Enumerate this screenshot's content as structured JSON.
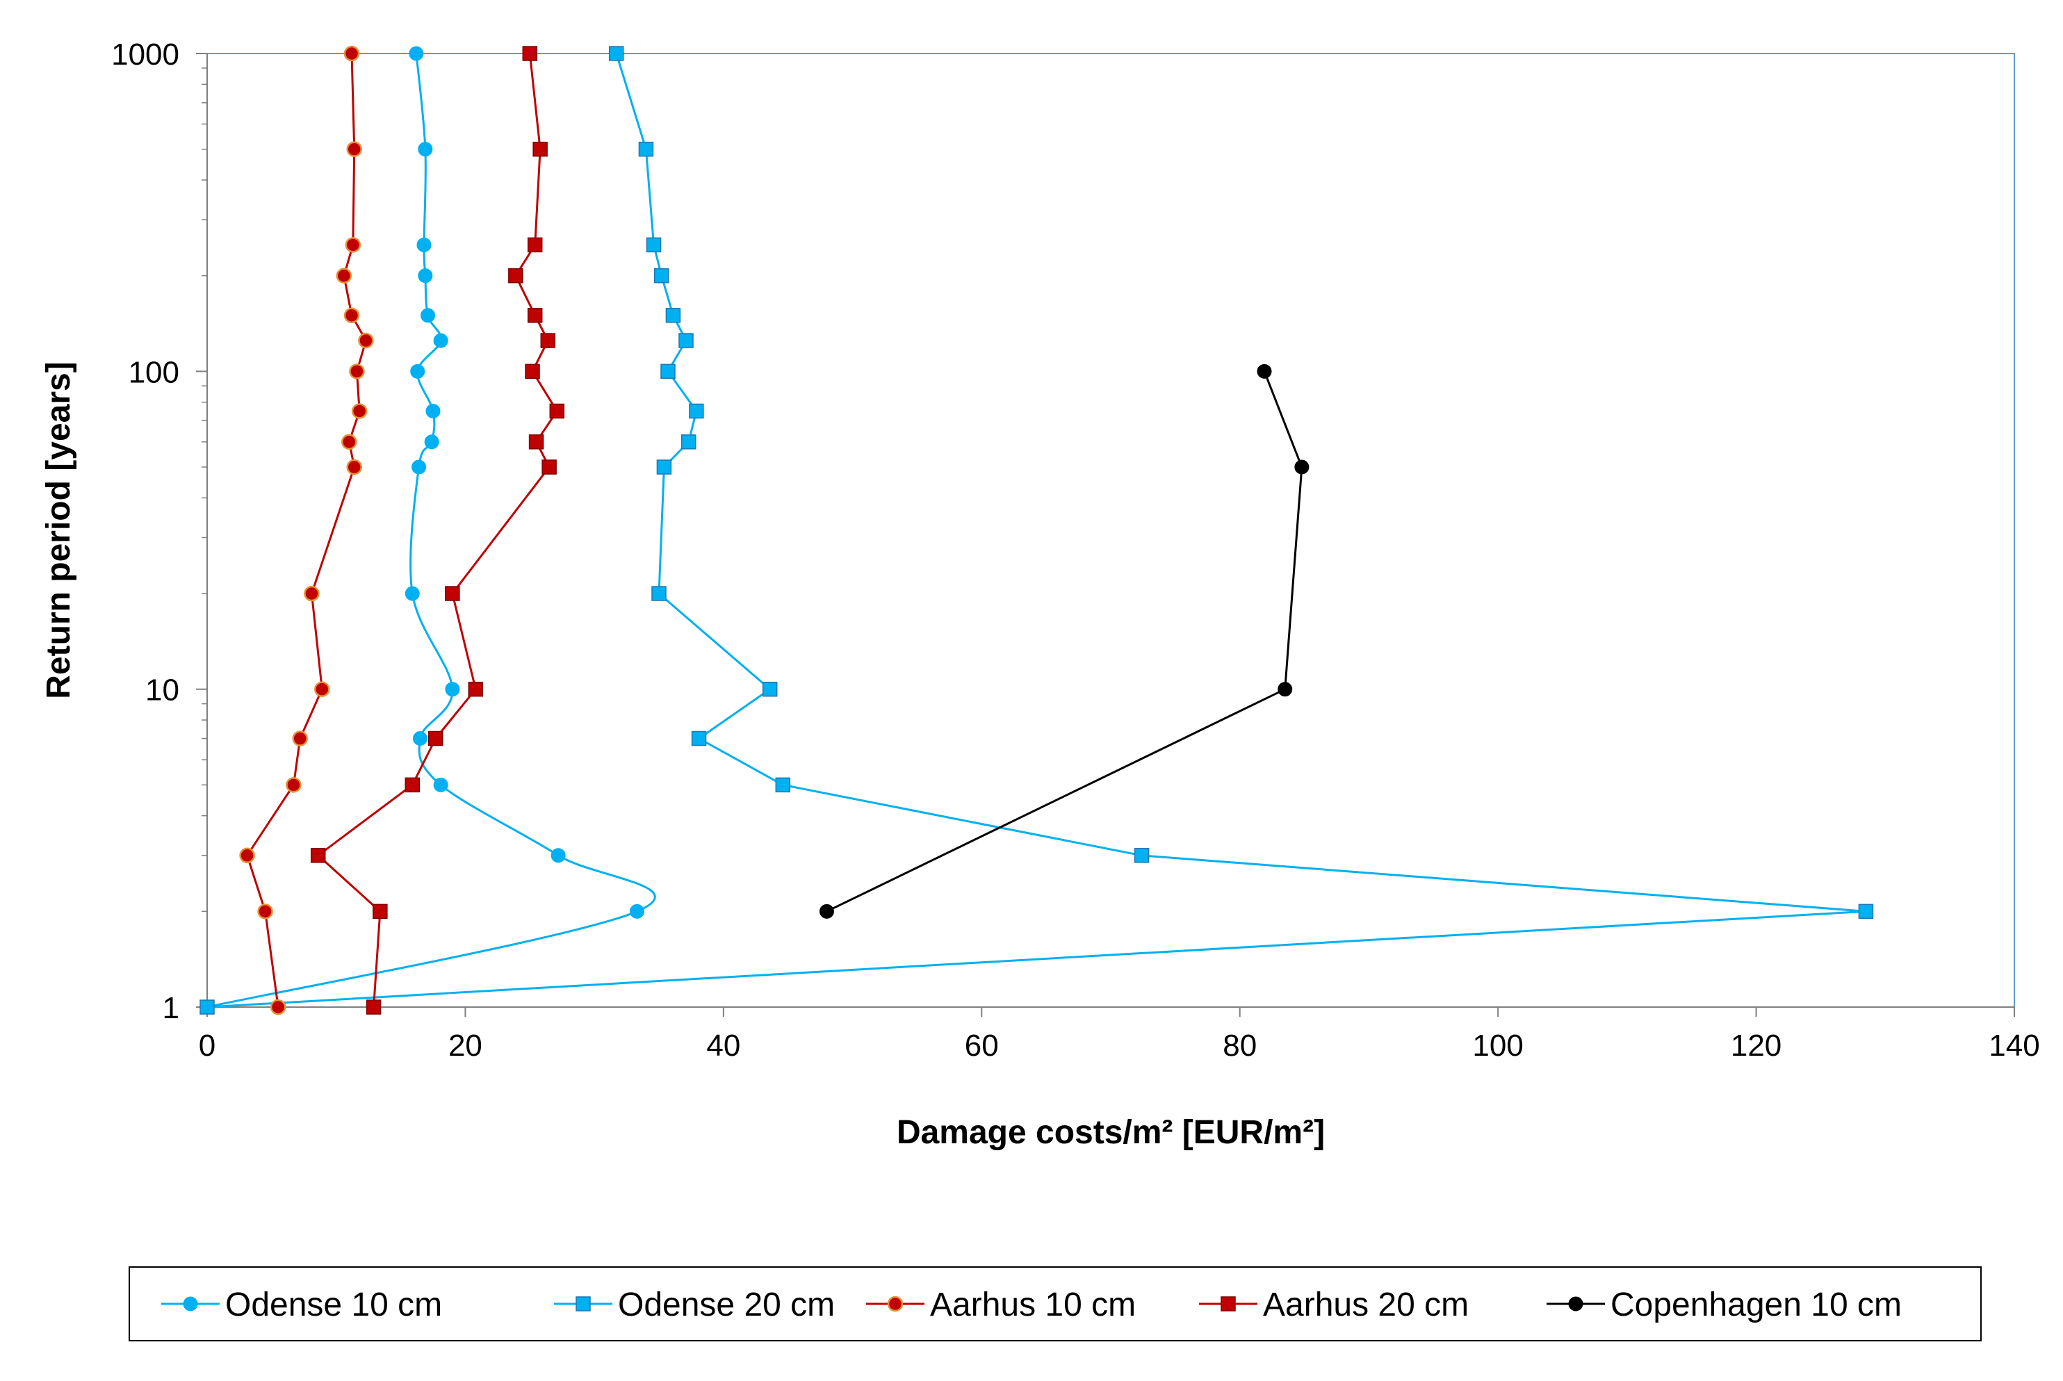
{
  "chart_data": {
    "type": "line",
    "title": "",
    "xlabel": "Damage costs/m² [EUR/m²]",
    "ylabel": "Return period [years]",
    "xlim": [
      0,
      140
    ],
    "ylim": [
      1,
      1000
    ],
    "yscale": "log",
    "xticks": [
      "0",
      "20",
      "40",
      "60",
      "80",
      "100",
      "120",
      "140"
    ],
    "yticks": [
      "1",
      "10",
      "100",
      "1000"
    ],
    "grid": false,
    "legend": "bottom",
    "series": [
      {
        "name": "Odense 10 cm",
        "color": "#00b0f0",
        "marker": "circle",
        "smooth": true,
        "points": [
          [
            0,
            1
          ],
          [
            33.3,
            2
          ],
          [
            27.2,
            3
          ],
          [
            18.1,
            5
          ],
          [
            16.5,
            7
          ],
          [
            19.0,
            10
          ],
          [
            15.9,
            20
          ],
          [
            16.4,
            50
          ],
          [
            17.4,
            60
          ],
          [
            17.5,
            75
          ],
          [
            16.3,
            100
          ],
          [
            18.1,
            125
          ],
          [
            17.1,
            150
          ],
          [
            16.9,
            200
          ],
          [
            16.8,
            250
          ],
          [
            16.9,
            500
          ],
          [
            16.2,
            1000
          ]
        ]
      },
      {
        "name": "Odense 20 cm",
        "color": "#00b0f0",
        "marker": "square",
        "smooth": false,
        "points": [
          [
            0,
            1
          ],
          [
            128.5,
            2
          ],
          [
            72.4,
            3
          ],
          [
            44.6,
            5
          ],
          [
            38.1,
            7
          ],
          [
            43.6,
            10
          ],
          [
            35.0,
            20
          ],
          [
            35.4,
            50
          ],
          [
            37.3,
            60
          ],
          [
            37.9,
            75
          ],
          [
            35.7,
            100
          ],
          [
            37.1,
            125
          ],
          [
            36.1,
            150
          ],
          [
            35.2,
            200
          ],
          [
            34.6,
            250
          ],
          [
            34.0,
            500
          ],
          [
            31.7,
            1000
          ]
        ]
      },
      {
        "name": "Aarhus 10 cm",
        "color": "#c00000",
        "marker": "circle",
        "smooth": false,
        "points": [
          [
            5.5,
            1
          ],
          [
            4.5,
            2
          ],
          [
            3.1,
            3
          ],
          [
            6.7,
            5
          ],
          [
            7.2,
            7
          ],
          [
            8.9,
            10
          ],
          [
            8.1,
            20
          ],
          [
            11.4,
            50
          ],
          [
            11.0,
            60
          ],
          [
            11.8,
            75
          ],
          [
            11.6,
            100
          ],
          [
            12.3,
            125
          ],
          [
            11.2,
            150
          ],
          [
            10.6,
            200
          ],
          [
            11.3,
            250
          ],
          [
            11.4,
            500
          ],
          [
            11.2,
            1000
          ]
        ]
      },
      {
        "name": "Aarhus 20 cm",
        "color": "#c00000",
        "marker": "square",
        "smooth": false,
        "points": [
          [
            12.9,
            1
          ],
          [
            13.4,
            2
          ],
          [
            8.6,
            3
          ],
          [
            15.9,
            5
          ],
          [
            17.7,
            7
          ],
          [
            20.8,
            10
          ],
          [
            19.0,
            20
          ],
          [
            26.5,
            50
          ],
          [
            25.5,
            60
          ],
          [
            27.1,
            75
          ],
          [
            25.2,
            100
          ],
          [
            26.4,
            125
          ],
          [
            25.4,
            150
          ],
          [
            23.9,
            200
          ],
          [
            25.4,
            250
          ],
          [
            25.8,
            500
          ],
          [
            25.0,
            1000
          ]
        ]
      },
      {
        "name": "Copenhagen 10 cm",
        "color": "#000000",
        "marker": "circle",
        "smooth": false,
        "points": [
          [
            48.0,
            2
          ],
          [
            83.5,
            10
          ],
          [
            84.8,
            50
          ],
          [
            81.9,
            100
          ]
        ]
      }
    ]
  }
}
